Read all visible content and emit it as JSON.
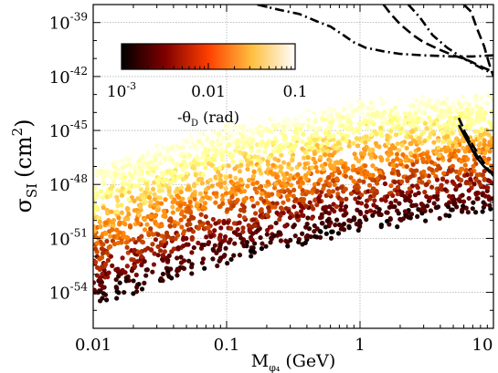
{
  "chart_data": {
    "type": "scatter",
    "title": "",
    "xlabel": "M",
    "xlabel_sub": "φ₄",
    "xlabel_unit": "(GeV)",
    "ylabel": "σ",
    "ylabel_sub": "SI",
    "ylabel_unit": "(cm",
    "ylabel_sup": "2",
    "ylabel_close": ")",
    "x_scale": "log",
    "y_scale": "log",
    "xlim": [
      0.01,
      10
    ],
    "ylim": [
      1e-56,
      1e-38
    ],
    "grid": true,
    "x_ticks": [
      {
        "value": 0.01,
        "label": "0.01"
      },
      {
        "value": 0.1,
        "label": "0.1"
      },
      {
        "value": 1,
        "label": "1"
      },
      {
        "value": 10,
        "label": "10"
      }
    ],
    "y_ticks": [
      {
        "value": 1e-54,
        "base": "10",
        "exp": "-54"
      },
      {
        "value": 1e-51,
        "base": "10",
        "exp": "-51"
      },
      {
        "value": 1e-48,
        "base": "10",
        "exp": "-48"
      },
      {
        "value": 1e-45,
        "base": "10",
        "exp": "-45"
      },
      {
        "value": 1e-42,
        "base": "10",
        "exp": "-42"
      },
      {
        "value": 1e-39,
        "base": "10",
        "exp": "-39"
      }
    ],
    "colorbar": {
      "label": "-θ",
      "label_sub": "D",
      "label_unit": "(rad)",
      "scale": "log",
      "range": [
        0.001,
        0.1
      ],
      "placement": "top-left",
      "colormap": "afmhot",
      "ticks": [
        {
          "value": 0.001,
          "base": "10",
          "exp": "-3"
        },
        {
          "value": 0.01,
          "label": "0.01"
        },
        {
          "value": 0.1,
          "label": "0.1"
        }
      ]
    },
    "scatter_band": {
      "description_points_generated": "scattered points filling band between lower and upper edge; color tracks -theta_D (bottom dark ~1e-3, top bright ~0.1)",
      "lower_edge": [
        [
          0.01,
          2e-55
        ],
        [
          0.1,
          4e-53
        ],
        [
          1,
          3e-51
        ],
        [
          10,
          3e-50
        ]
      ],
      "upper_edge": [
        [
          0.01,
          1e-47
        ],
        [
          0.1,
          2e-45
        ],
        [
          1,
          5e-44
        ],
        [
          10,
          1e-43
        ]
      ],
      "n_points": 2600
    },
    "exclusion_curves": [
      {
        "style": "dash-dot",
        "points": [
          [
            0.17,
            1e-38
          ],
          [
            0.25,
            5e-39
          ],
          [
            0.35,
            3e-39
          ],
          [
            0.5,
            1e-39
          ],
          [
            0.6,
            6e-40
          ],
          [
            0.75,
            2e-40
          ],
          [
            0.9,
            8e-41
          ],
          [
            1.1,
            4e-41
          ],
          [
            1.5,
            2.5e-41
          ],
          [
            2,
            1.8e-41
          ],
          [
            3,
            1.5e-41
          ],
          [
            5,
            1.3e-41
          ],
          [
            7,
            1.3e-41
          ],
          [
            10,
            1.5e-41
          ]
        ]
      },
      {
        "style": "dashed",
        "points": [
          [
            1.5,
            1e-38
          ],
          [
            1.7,
            3e-39
          ],
          [
            2,
            8e-40
          ],
          [
            2.5,
            2e-40
          ],
          [
            3,
            8e-41
          ],
          [
            4,
            3e-41
          ],
          [
            5,
            1.5e-41
          ],
          [
            6,
            1e-41
          ],
          [
            7,
            6e-42
          ],
          [
            8.5,
            3e-42
          ],
          [
            10,
            1.8e-42
          ]
        ]
      },
      {
        "style": "dash-dot",
        "points": [
          [
            2.3,
            1e-38
          ],
          [
            2.8,
            2e-39
          ],
          [
            3.5,
            2e-40
          ],
          [
            4.5,
            4e-41
          ],
          [
            5.5,
            1.5e-41
          ],
          [
            6.5,
            7e-42
          ],
          [
            7.5,
            4e-42
          ],
          [
            8.7,
            2.2e-42
          ],
          [
            10,
            1.5e-42
          ]
        ]
      },
      {
        "style": "dashed",
        "points": [
          [
            6,
            1e-38
          ],
          [
            6.8,
            4e-39
          ],
          [
            7.5,
            5e-40
          ],
          [
            8.5,
            5e-41
          ],
          [
            9.3,
            5e-42
          ],
          [
            10,
            1e-42
          ]
        ]
      },
      {
        "style": "dash-dot",
        "points": [
          [
            5.5,
            5e-45
          ],
          [
            6.5,
            3e-46
          ],
          [
            7.5,
            4e-47
          ],
          [
            8.5,
            1e-47
          ],
          [
            10,
            3e-48
          ]
        ]
      },
      {
        "style": "solid",
        "points": [
          [
            5.5,
            2e-45
          ],
          [
            6.5,
            2e-46
          ],
          [
            7.5,
            3e-47
          ],
          [
            8.5,
            1e-47
          ],
          [
            10,
            4e-48
          ]
        ]
      },
      {
        "style": "dashed",
        "points": [
          [
            6,
            1e-45
          ],
          [
            7,
            1.5e-46
          ],
          [
            8,
            3e-47
          ],
          [
            9,
            8e-48
          ],
          [
            10,
            3e-48
          ]
        ]
      }
    ]
  }
}
